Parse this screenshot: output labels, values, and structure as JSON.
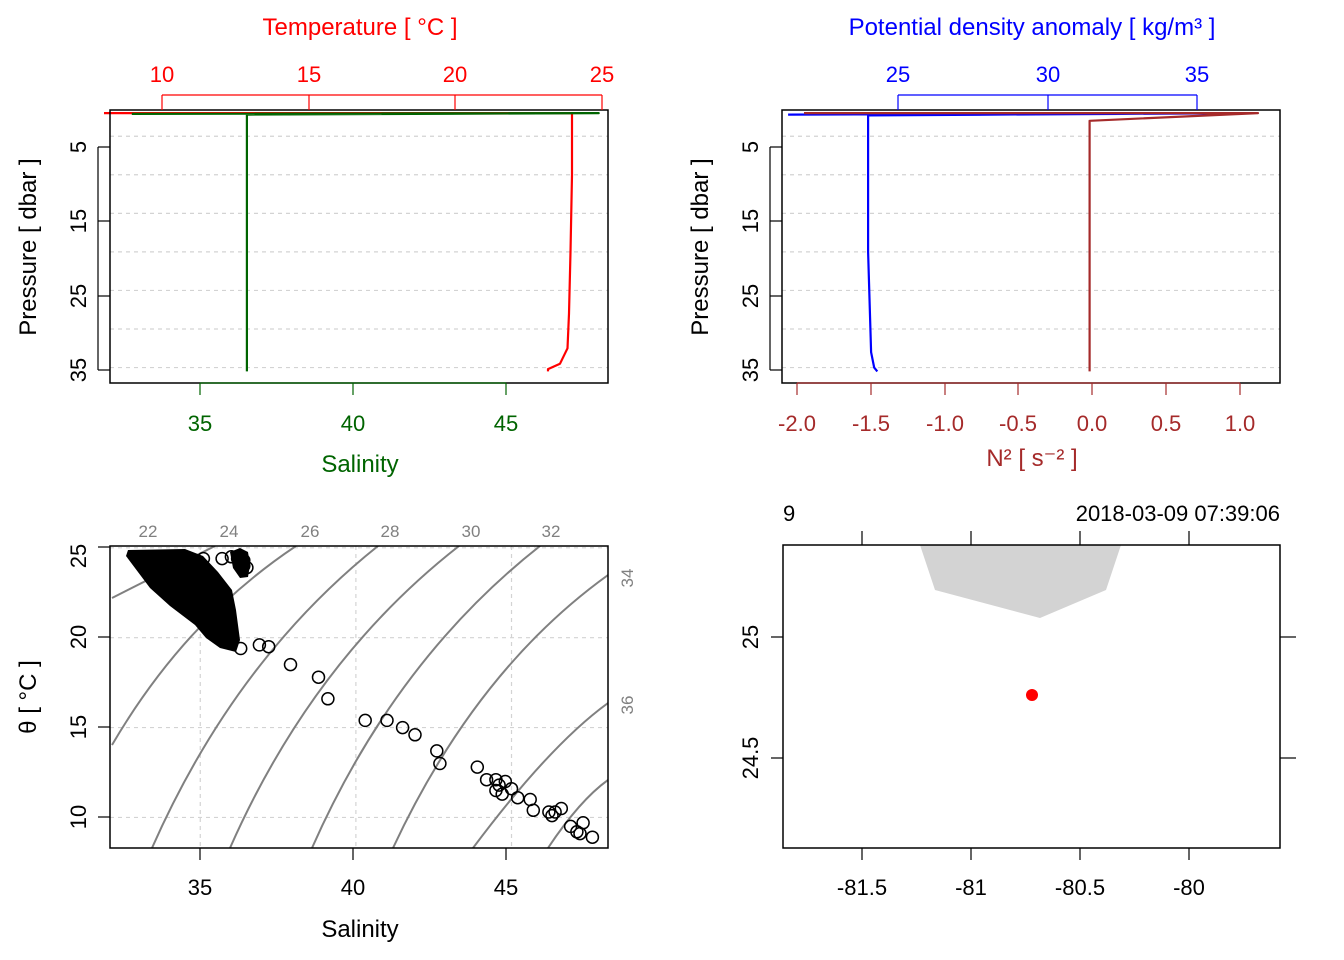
{
  "colors": {
    "temperature": "#ff0000",
    "salinity": "#006400",
    "density": "#0000ff",
    "n2": "#a52a2a",
    "grid": "#d3d3d3",
    "isopycnal": "#808080",
    "coast": "#d3d3d3",
    "station": "#ff0000"
  },
  "chart_data": [
    {
      "type": "line",
      "panel": "profile-temperature-salinity",
      "top_axis_title": "Temperature [ °C ]",
      "bottom_axis_title": "Salinity",
      "ylabel": "Pressure [ dbar ]",
      "top_ticks": [
        "10",
        "15",
        "20",
        "25"
      ],
      "bottom_ticks": [
        "35",
        "40",
        "45"
      ],
      "y_ticks": [
        "5",
        "15",
        "25",
        "35"
      ],
      "y_reversed": true,
      "ylim": [
        1.6,
        37
      ],
      "temperature_xlim": [
        9.2,
        25.8
      ],
      "salinity_xlim": [
        32.1,
        48.1
      ],
      "grid": true,
      "series": [
        {
          "name": "Temperature",
          "color": "#ff0000",
          "x": [
            9.0,
            20.0,
            24.6,
            24.6,
            24.55,
            24.5,
            24.45,
            24.2,
            23.8,
            23.8
          ],
          "y": [
            2.0,
            2.0,
            2.0,
            10,
            20,
            28,
            32.5,
            34.5,
            35.2,
            35.5
          ]
        },
        {
          "name": "Salinity",
          "color": "#006400",
          "x": [
            32.8,
            47.8,
            36.5,
            36.5,
            36.5,
            36.5,
            36.5,
            36.5
          ],
          "y": [
            2.1,
            2.0,
            2.2,
            10,
            20,
            30,
            34.5,
            35.5
          ]
        }
      ]
    },
    {
      "type": "line",
      "panel": "profile-density-n2",
      "top_axis_title": "Potential density anomaly [ kg/m³ ]",
      "bottom_axis_title": "N² [ s⁻² ]",
      "ylabel": "Pressure [ dbar ]",
      "top_ticks": [
        "25",
        "30",
        "35"
      ],
      "bottom_ticks": [
        "-2.0",
        "-1.5",
        "-1.0",
        "-0.5",
        "0.0",
        "0.5",
        "1.0"
      ],
      "y_ticks": [
        "5",
        "15",
        "25",
        "35"
      ],
      "y_reversed": true,
      "ylim": [
        1.6,
        37
      ],
      "n2_xlim": [
        -2.1,
        1.3
      ],
      "density_xlim": [
        21.7,
        37.9
      ],
      "grid": true,
      "series": [
        {
          "name": "Potential density anomaly",
          "color": "#0000ff",
          "x": [
            21.9,
            37.0,
            24.5,
            24.5,
            24.6,
            24.7,
            24.8
          ],
          "y": [
            2.2,
            2.0,
            2.3,
            20,
            33,
            35,
            35.5
          ]
        },
        {
          "name": "N²",
          "color": "#a52a2a",
          "x": [
            -1.95,
            1.15,
            0.0,
            0.0,
            0.0
          ],
          "y": [
            2.0,
            2.0,
            3.0,
            20,
            35.5
          ]
        }
      ]
    },
    {
      "type": "scatter",
      "panel": "ts-diagram",
      "xlabel": "Salinity",
      "ylabel": "θ [ °C ]",
      "x_ticks": [
        "35",
        "40",
        "45"
      ],
      "y_ticks": [
        "10",
        "15",
        "20",
        "25"
      ],
      "xlim": [
        32.1,
        48.1
      ],
      "ylim": [
        8.3,
        25.1
      ],
      "grid": true,
      "isopycnal_labels_top": [
        "22",
        "24",
        "26",
        "28",
        "30",
        "32"
      ],
      "isopycnal_labels_right": [
        "34",
        "36"
      ],
      "points": [
        {
          "x": 35.1,
          "y": 24.4
        },
        {
          "x": 35.7,
          "y": 24.4
        },
        {
          "x": 36.0,
          "y": 24.5
        },
        {
          "x": 36.2,
          "y": 24.4
        },
        {
          "x": 36.4,
          "y": 24.3
        },
        {
          "x": 36.5,
          "y": 23.9
        },
        {
          "x": 36.4,
          "y": 24.0
        },
        {
          "x": 36.9,
          "y": 19.6
        },
        {
          "x": 37.2,
          "y": 19.5
        },
        {
          "x": 36.3,
          "y": 19.4
        },
        {
          "x": 37.9,
          "y": 18.5
        },
        {
          "x": 38.8,
          "y": 17.8
        },
        {
          "x": 39.1,
          "y": 16.6
        },
        {
          "x": 40.3,
          "y": 15.4
        },
        {
          "x": 41.0,
          "y": 15.4
        },
        {
          "x": 41.5,
          "y": 15.0
        },
        {
          "x": 41.9,
          "y": 14.6
        },
        {
          "x": 42.6,
          "y": 13.7
        },
        {
          "x": 42.7,
          "y": 13.0
        },
        {
          "x": 43.9,
          "y": 12.8
        },
        {
          "x": 44.2,
          "y": 12.1
        },
        {
          "x": 44.5,
          "y": 12.1
        },
        {
          "x": 44.6,
          "y": 11.8
        },
        {
          "x": 44.8,
          "y": 12.0
        },
        {
          "x": 44.5,
          "y": 11.5
        },
        {
          "x": 44.7,
          "y": 11.3
        },
        {
          "x": 45.0,
          "y": 11.6
        },
        {
          "x": 45.2,
          "y": 11.1
        },
        {
          "x": 45.6,
          "y": 11.0
        },
        {
          "x": 45.7,
          "y": 10.4
        },
        {
          "x": 46.2,
          "y": 10.3
        },
        {
          "x": 46.3,
          "y": 10.1
        },
        {
          "x": 46.4,
          "y": 10.3
        },
        {
          "x": 46.6,
          "y": 10.5
        },
        {
          "x": 46.9,
          "y": 9.5
        },
        {
          "x": 47.1,
          "y": 9.2
        },
        {
          "x": 47.3,
          "y": 9.7
        },
        {
          "x": 47.2,
          "y": 9.1
        },
        {
          "x": 47.6,
          "y": 8.9
        }
      ]
    },
    {
      "type": "map",
      "panel": "station-map",
      "top_left_text": "9",
      "top_right_text": "2018-03-09 07:39:06",
      "x_ticks": [
        "-81.5",
        "-81",
        "-80.5",
        "-80"
      ],
      "y_ticks": [
        "24.5",
        "25"
      ],
      "xlim": [
        -81.87,
        -80.42
      ],
      "ylim": [
        24.23,
        25.49
      ],
      "station": {
        "lon": -80.63,
        "lat": 24.76
      },
      "land_polygon": [
        [
          -81.25,
          25.49
        ],
        [
          -81.18,
          25.29
        ],
        [
          -80.71,
          25.19
        ],
        [
          -80.43,
          25.29
        ],
        [
          -80.37,
          25.49
        ]
      ]
    }
  ]
}
